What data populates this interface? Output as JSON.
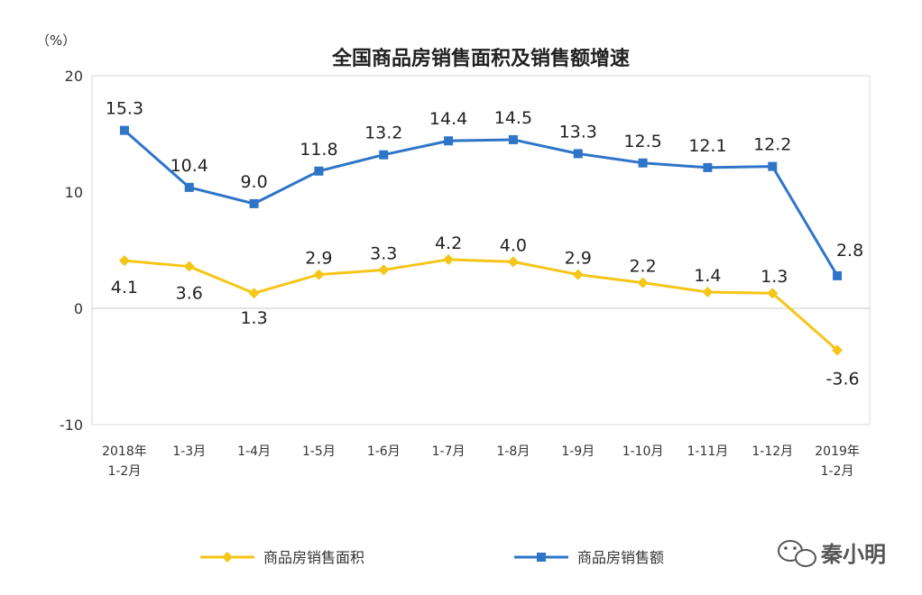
{
  "chart_data": {
    "type": "line",
    "title": "全国商品房销售面积及销售额增速",
    "unit_label": "（%）",
    "ylim": [
      -10,
      20
    ],
    "yticks": [
      20,
      10,
      0,
      -10
    ],
    "grid": false,
    "legend_position": "bottom",
    "categories": [
      [
        "2018年",
        "1-2月"
      ],
      [
        "1-3月"
      ],
      [
        "1-4月"
      ],
      [
        "1-5月"
      ],
      [
        "1-6月"
      ],
      [
        "1-7月"
      ],
      [
        "1-8月"
      ],
      [
        "1-9月"
      ],
      [
        "1-10月"
      ],
      [
        "1-11月"
      ],
      [
        "1-12月"
      ],
      [
        "2019年",
        "1-2月"
      ]
    ],
    "series": [
      {
        "name": "商品房销售额",
        "color": "#2e75c8",
        "marker": "square",
        "values": [
          15.3,
          10.4,
          9.0,
          11.8,
          13.2,
          14.4,
          14.5,
          13.3,
          12.5,
          12.1,
          12.2,
          2.8
        ],
        "labels": [
          "15.3",
          "10.4",
          "9.0",
          "11.8",
          "13.2",
          "14.4",
          "14.5",
          "13.3",
          "12.5",
          "12.1",
          "12.2",
          "2.8"
        ]
      },
      {
        "name": "商品房销售面积",
        "color": "#f5c518",
        "marker": "diamond",
        "values": [
          4.1,
          3.6,
          1.3,
          2.9,
          3.3,
          4.2,
          4.0,
          2.9,
          2.2,
          1.4,
          1.3,
          -3.6
        ],
        "labels": [
          "4.1",
          "3.6",
          "1.3",
          "2.9",
          "3.3",
          "4.2",
          "4.0",
          "2.9",
          "2.2",
          "1.4",
          "1.3",
          "-3.6"
        ]
      }
    ]
  },
  "watermark": {
    "text": "秦小明",
    "icon": "wechat-icon"
  }
}
